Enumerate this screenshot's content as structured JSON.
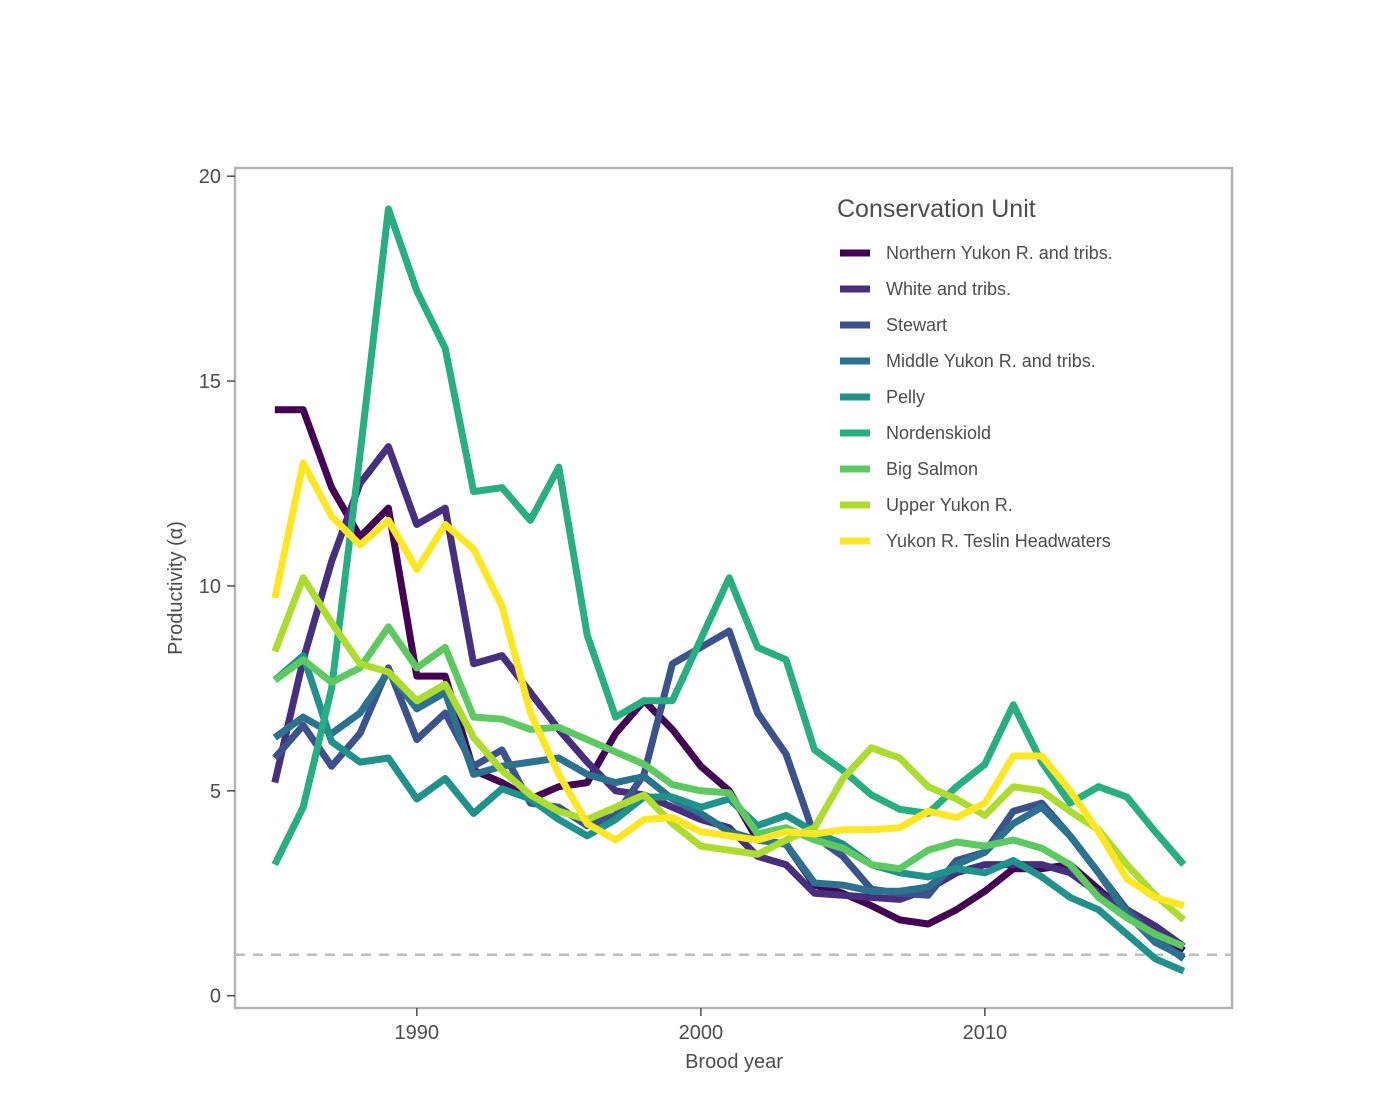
{
  "chart_data": {
    "type": "line",
    "title": "",
    "xlabel": "Brood year",
    "ylabel": "Productivity (α)",
    "xlim": [
      1983.6,
      2018.7
    ],
    "ylim": [
      -0.3,
      20.2
    ],
    "x_ticks": [
      1990,
      2000,
      2010
    ],
    "y_ticks": [
      0,
      5,
      10,
      15,
      20
    ],
    "grid": false,
    "legend": {
      "title": "Conservation Unit",
      "position": "top-right"
    },
    "reference_line": {
      "y": 1,
      "style": "dashed",
      "color": "#bdbdbd"
    },
    "x": [
      1985,
      1986,
      1987,
      1988,
      1989,
      1990,
      1991,
      1992,
      1993,
      1994,
      1995,
      1996,
      1997,
      1998,
      1999,
      2000,
      2001,
      2002,
      2003,
      2004,
      2005,
      2006,
      2007,
      2008,
      2009,
      2010,
      2011,
      2012,
      2013,
      2014,
      2015,
      2016,
      2017
    ],
    "series": [
      {
        "name": "Northern Yukon R. and tribs.",
        "color": "#440154",
        "values": [
          14.3,
          14.3,
          12.4,
          11.2,
          11.9,
          7.8,
          7.8,
          5.5,
          5.2,
          4.8,
          5.1,
          5.2,
          6.4,
          7.2,
          6.5,
          5.6,
          5.0,
          3.8,
          3.7,
          2.7,
          2.5,
          2.2,
          1.85,
          1.75,
          2.1,
          2.55,
          3.1,
          3.1,
          3.2,
          2.6,
          2.0,
          1.6,
          1.1
        ]
      },
      {
        "name": "White and tribs.",
        "color": "#472f7d",
        "values": [
          5.2,
          8.2,
          10.6,
          12.5,
          13.4,
          11.5,
          11.9,
          8.1,
          8.3,
          7.4,
          6.5,
          5.7,
          5.0,
          4.9,
          4.6,
          4.3,
          4.1,
          3.4,
          3.2,
          2.5,
          2.45,
          2.4,
          2.35,
          2.6,
          3.0,
          3.2,
          3.2,
          3.2,
          3.0,
          2.5,
          2.1,
          1.7,
          1.2
        ]
      },
      {
        "name": "Stewart",
        "color": "#3b528b",
        "values": [
          5.8,
          6.6,
          5.6,
          6.4,
          8.0,
          6.25,
          6.9,
          5.6,
          6.0,
          4.7,
          4.6,
          4.15,
          4.4,
          5.4,
          8.1,
          8.5,
          8.9,
          6.9,
          5.9,
          3.9,
          3.4,
          2.6,
          2.5,
          2.45,
          3.3,
          3.5,
          4.5,
          4.7,
          3.9,
          3.0,
          2.1,
          1.4,
          0.9
        ]
      },
      {
        "name": "Middle Yukon R. and tribs.",
        "color": "#2c728e",
        "values": [
          6.3,
          6.8,
          6.4,
          6.9,
          7.9,
          7.0,
          7.4,
          5.4,
          5.6,
          5.7,
          5.8,
          5.4,
          5.2,
          5.35,
          4.8,
          4.45,
          4.0,
          3.8,
          3.7,
          2.75,
          2.7,
          2.55,
          2.55,
          2.65,
          3.2,
          3.5,
          4.2,
          4.6,
          3.9,
          3.0,
          2.0,
          1.3,
          0.95
        ]
      },
      {
        "name": "Pelly",
        "color": "#21918c",
        "values": [
          7.7,
          8.3,
          6.2,
          5.7,
          5.8,
          4.8,
          5.3,
          4.45,
          5.05,
          4.8,
          4.3,
          3.9,
          4.3,
          4.85,
          4.85,
          4.6,
          4.8,
          4.15,
          4.4,
          4.0,
          3.7,
          3.2,
          3.0,
          2.9,
          3.1,
          3.0,
          3.3,
          2.9,
          2.4,
          2.1,
          1.5,
          0.9,
          0.6
        ]
      },
      {
        "name": "Nordenskiold",
        "color": "#28ae80",
        "values": [
          3.2,
          4.6,
          7.5,
          13.2,
          19.2,
          17.2,
          15.8,
          12.3,
          12.4,
          11.6,
          12.9,
          8.8,
          6.8,
          7.2,
          7.2,
          8.7,
          10.2,
          8.5,
          8.2,
          6.0,
          5.5,
          4.9,
          4.55,
          4.45,
          5.1,
          5.65,
          7.1,
          5.7,
          4.7,
          5.1,
          4.85,
          4.0,
          3.2
        ]
      },
      {
        "name": "Big Salmon",
        "color": "#5ec962",
        "values": [
          7.7,
          8.2,
          7.65,
          8.0,
          9.0,
          8.0,
          8.5,
          6.8,
          6.75,
          6.5,
          6.55,
          6.25,
          5.95,
          5.65,
          5.15,
          5.0,
          4.95,
          3.95,
          4.1,
          3.8,
          3.6,
          3.2,
          3.1,
          3.55,
          3.75,
          3.65,
          3.8,
          3.6,
          3.2,
          2.4,
          1.9,
          1.5,
          1.2
        ]
      },
      {
        "name": "Upper Yukon R.",
        "color": "#addc30",
        "values": [
          8.4,
          10.2,
          9.1,
          8.1,
          7.9,
          7.2,
          7.6,
          6.3,
          5.5,
          4.9,
          4.5,
          4.3,
          4.6,
          4.9,
          4.2,
          3.65,
          3.55,
          3.45,
          3.8,
          4.1,
          5.3,
          6.05,
          5.8,
          5.1,
          4.8,
          4.4,
          5.1,
          5.0,
          4.5,
          4.05,
          3.2,
          2.45,
          1.85
        ]
      },
      {
        "name": "Yukon R. Teslin Headwaters",
        "color": "#fde725",
        "values": [
          9.7,
          13.0,
          11.7,
          11.0,
          11.6,
          10.4,
          11.5,
          10.9,
          9.5,
          6.9,
          5.4,
          4.2,
          3.8,
          4.3,
          4.35,
          4.0,
          3.9,
          3.8,
          4.0,
          3.95,
          4.05,
          4.05,
          4.1,
          4.5,
          4.35,
          4.7,
          5.85,
          5.85,
          5.0,
          4.0,
          2.85,
          2.4,
          2.2
        ]
      }
    ]
  }
}
